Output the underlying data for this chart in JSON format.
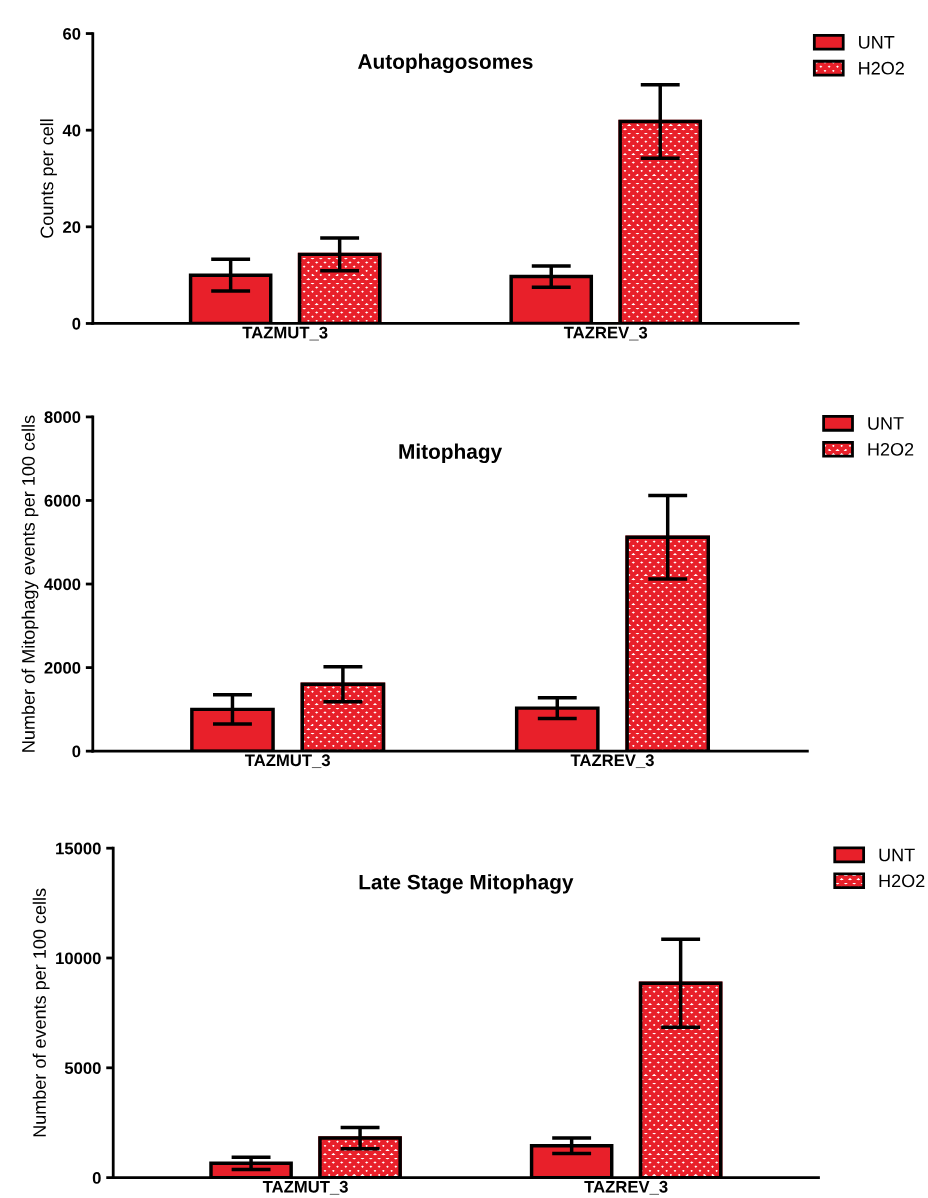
{
  "chart_data": [
    {
      "type": "bar",
      "title": "Autophagosomes",
      "ylabel": "Counts per cell",
      "categories": [
        "TAZMUT_3",
        "TAZREV_3"
      ],
      "ylim": [
        0,
        60
      ],
      "yticks": [
        0,
        20,
        40,
        60
      ],
      "legend": "top right",
      "series": [
        {
          "name": "UNT",
          "color": "#e8202a",
          "values": [
            10,
            9.7
          ],
          "errors": [
            3.3,
            2.2
          ]
        },
        {
          "name": "H2O2",
          "color": "#e8202a",
          "values": [
            14.3,
            41.8
          ],
          "errors": [
            3.4,
            7.6
          ]
        }
      ]
    },
    {
      "type": "bar",
      "title": "Mitophagy",
      "ylabel": "Number of Mitophagy events per 100 cells",
      "categories": [
        "TAZMUT_3",
        "TAZREV_3"
      ],
      "ylim": [
        0,
        8000
      ],
      "yticks": [
        0,
        2000,
        4000,
        6000,
        8000
      ],
      "legend": "top right",
      "series": [
        {
          "name": "UNT",
          "color": "#e8202a",
          "values": [
            1000,
            1030
          ],
          "errors": [
            350,
            250
          ]
        },
        {
          "name": "H2O2",
          "color": "#e8202a",
          "values": [
            1600,
            5120
          ],
          "errors": [
            420,
            1000
          ]
        }
      ]
    },
    {
      "type": "bar",
      "title": "Late Stage Mitophagy",
      "ylabel": "Number of events per 100 cells",
      "categories": [
        "TAZMUT_3",
        "TAZREV_3"
      ],
      "ylim": [
        0,
        15000
      ],
      "yticks": [
        0,
        5000,
        10000,
        15000
      ],
      "legend": "top right",
      "series": [
        {
          "name": "UNT",
          "color": "#e8202a",
          "values": [
            650,
            1450
          ],
          "errors": [
            280,
            350
          ]
        },
        {
          "name": "H2O2",
          "color": "#e8202a",
          "values": [
            1800,
            8850
          ],
          "errors": [
            480,
            2000
          ]
        }
      ]
    }
  ]
}
